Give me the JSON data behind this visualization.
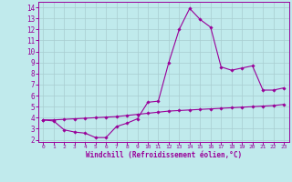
{
  "xlabel": "Windchill (Refroidissement éolien,°C)",
  "background_color": "#c0eaec",
  "line_color": "#990099",
  "grid_color": "#a8cdd0",
  "xlim": [
    -0.5,
    23.5
  ],
  "ylim": [
    1.8,
    14.5
  ],
  "xticks": [
    0,
    1,
    2,
    3,
    4,
    5,
    6,
    7,
    8,
    9,
    10,
    11,
    12,
    13,
    14,
    15,
    16,
    17,
    18,
    19,
    20,
    21,
    22,
    23
  ],
  "yticks": [
    2,
    3,
    4,
    5,
    6,
    7,
    8,
    9,
    10,
    11,
    12,
    13,
    14
  ],
  "line1_x": [
    0,
    1,
    2,
    3,
    4,
    5,
    6,
    7,
    8,
    9,
    10,
    11,
    12,
    13,
    14,
    15,
    16,
    17,
    18,
    19,
    20,
    21,
    22,
    23
  ],
  "line1_y": [
    3.8,
    3.7,
    2.9,
    2.7,
    2.6,
    2.2,
    2.2,
    3.2,
    3.5,
    3.9,
    5.4,
    5.5,
    9.0,
    12.0,
    13.9,
    12.9,
    12.2,
    8.6,
    8.3,
    8.5,
    8.7,
    6.5,
    6.5,
    6.7
  ],
  "line2_x": [
    0,
    1,
    2,
    3,
    4,
    5,
    6,
    7,
    8,
    9,
    10,
    11,
    12,
    13,
    14,
    15,
    16,
    17,
    18,
    19,
    20,
    21,
    22,
    23
  ],
  "line2_y": [
    3.8,
    3.8,
    3.85,
    3.9,
    3.95,
    4.0,
    4.05,
    4.1,
    4.2,
    4.3,
    4.4,
    4.5,
    4.6,
    4.65,
    4.7,
    4.75,
    4.8,
    4.85,
    4.9,
    4.95,
    5.0,
    5.05,
    5.1,
    5.2
  ]
}
